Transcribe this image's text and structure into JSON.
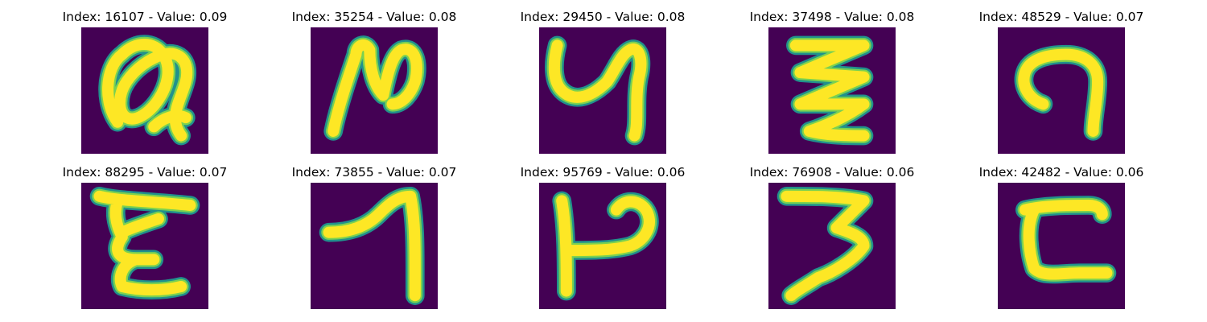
{
  "figure": {
    "colors": {
      "background": "#440154",
      "stroke_edge": "#21918c",
      "stroke_mid": "#7ad151",
      "stroke_core": "#fde725"
    },
    "panels": [
      {
        "title": "Index: 16107 - Value: 0.09"
      },
      {
        "title": "Index: 35254 - Value: 0.08"
      },
      {
        "title": "Index: 29450 - Value: 0.08"
      },
      {
        "title": "Index: 37498 - Value: 0.08"
      },
      {
        "title": "Index: 48529 - Value: 0.07"
      },
      {
        "title": "Index: 88295 - Value: 0.07"
      },
      {
        "title": "Index: 73855 - Value: 0.07"
      },
      {
        "title": "Index: 95769 - Value: 0.06"
      },
      {
        "title": "Index: 76908 - Value: 0.06"
      },
      {
        "title": "Index: 42482 - Value: 0.06"
      }
    ]
  }
}
